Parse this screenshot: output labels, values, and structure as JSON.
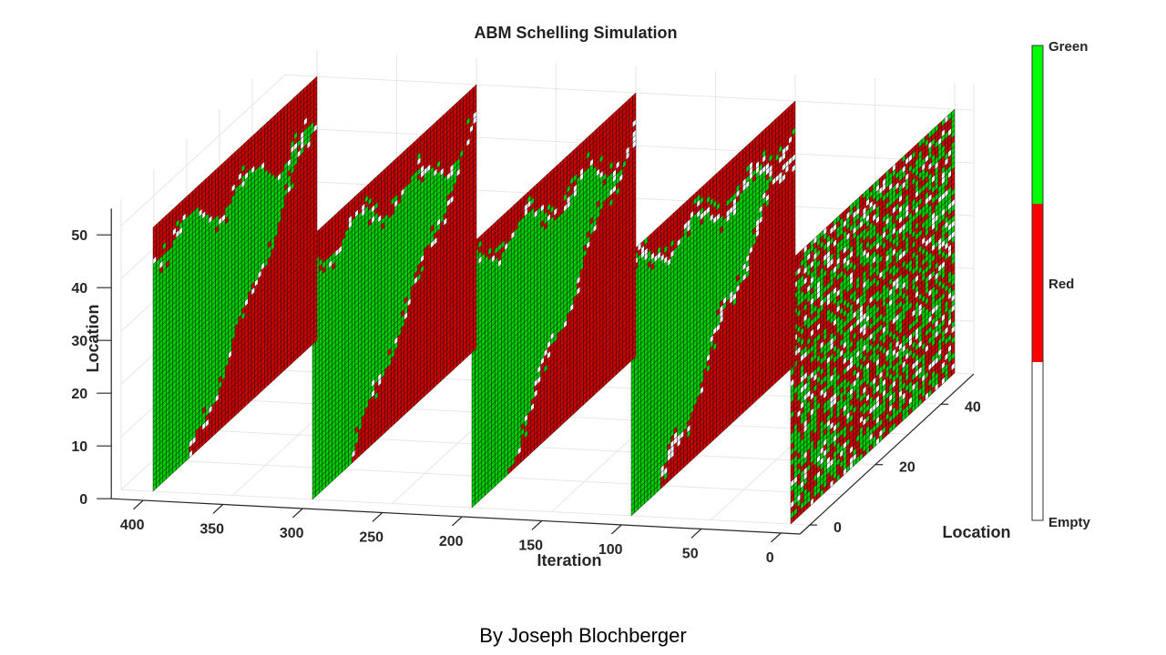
{
  "chart_data": {
    "type": "heatmap",
    "title": "ABM Schelling Simulation",
    "xlabel": "Iteration",
    "ylabel": "Location",
    "zlabel": "Location",
    "x_ticks": [
      "400",
      "350",
      "300",
      "250",
      "200",
      "150",
      "100",
      "50",
      "0"
    ],
    "y_ticks": [
      "0",
      "20",
      "40"
    ],
    "z_ticks": [
      "0",
      "10",
      "20",
      "30",
      "40",
      "50"
    ],
    "grid_size": 50,
    "iterations_shown": [
      400,
      300,
      200,
      100,
      0
    ],
    "states": [
      "Empty",
      "Red",
      "Green"
    ],
    "state_colors": {
      "Empty": "#ffffff",
      "Red": "#cc0000",
      "Green": "#00cc00"
    },
    "colorbar": {
      "labels": [
        "Green",
        "Red",
        "Empty"
      ],
      "colors": [
        "#00ff00",
        "#ff0000",
        "#ffffff"
      ]
    }
  },
  "footer": {
    "credit": "By Joseph Blochberger"
  }
}
